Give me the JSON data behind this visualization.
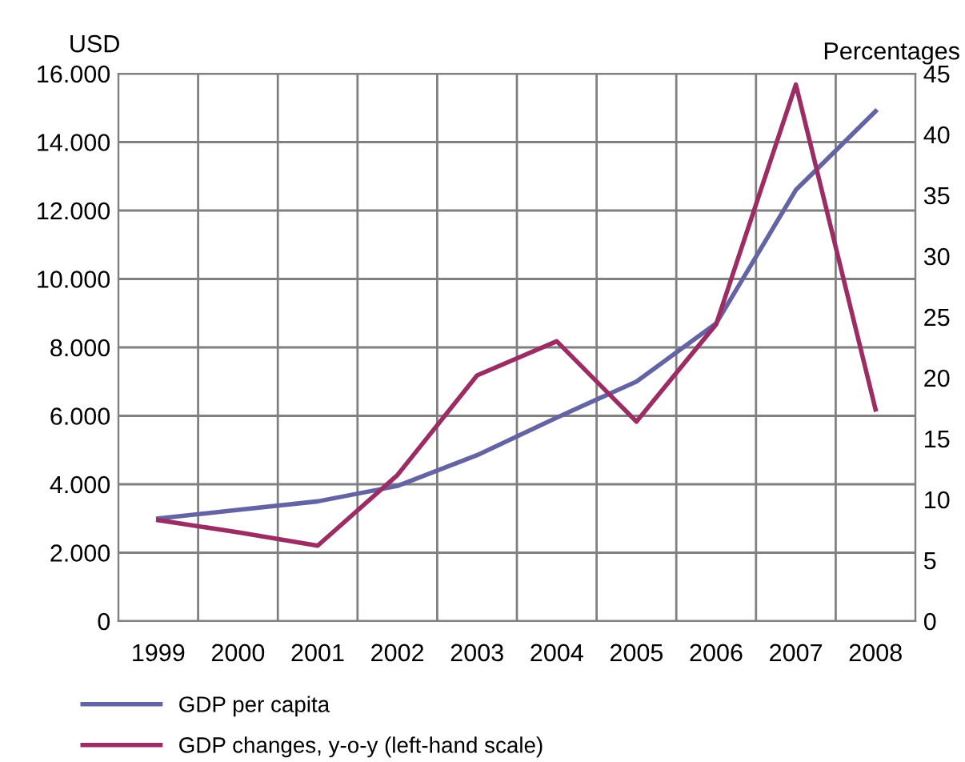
{
  "chart_data": {
    "type": "line",
    "ylabel": "USD",
    "y2label": "Percentages",
    "categories": [
      "1999",
      "2000",
      "2001",
      "2002",
      "2003",
      "2004",
      "2005",
      "2006",
      "2007",
      "2008"
    ],
    "series": [
      {
        "name": "GDP per capita",
        "color": "#6464a4",
        "values": [
          3000,
          3250,
          3500,
          3950,
          4850,
          5950,
          7000,
          8700,
          12600,
          14900
        ]
      },
      {
        "name": "GDP changes, y-o-y (left-hand scale)",
        "color": "#9c2c64",
        "axis": "y2",
        "values": [
          8.3,
          7.3,
          6.2,
          12.0,
          20.2,
          23.0,
          16.4,
          24.4,
          44.1,
          17.4
        ]
      }
    ],
    "ylim": [
      0,
      16000
    ],
    "yticks": [
      {
        "value": 0,
        "label": "0"
      },
      {
        "value": 2000,
        "label": "2.000"
      },
      {
        "value": 4000,
        "label": "4.000"
      },
      {
        "value": 6000,
        "label": "6.000"
      },
      {
        "value": 8000,
        "label": "8.000"
      },
      {
        "value": 10000,
        "label": "10.000"
      },
      {
        "value": 12000,
        "label": "12.000"
      },
      {
        "value": 14000,
        "label": "14.000"
      },
      {
        "value": 16000,
        "label": "16.000"
      }
    ],
    "y2lim": [
      0,
      45
    ],
    "y2ticks": [
      0,
      5,
      10,
      15,
      20,
      25,
      30,
      35,
      40,
      45
    ],
    "grid": true,
    "legend": "bottom",
    "marker": "none",
    "line_style": "solid"
  }
}
